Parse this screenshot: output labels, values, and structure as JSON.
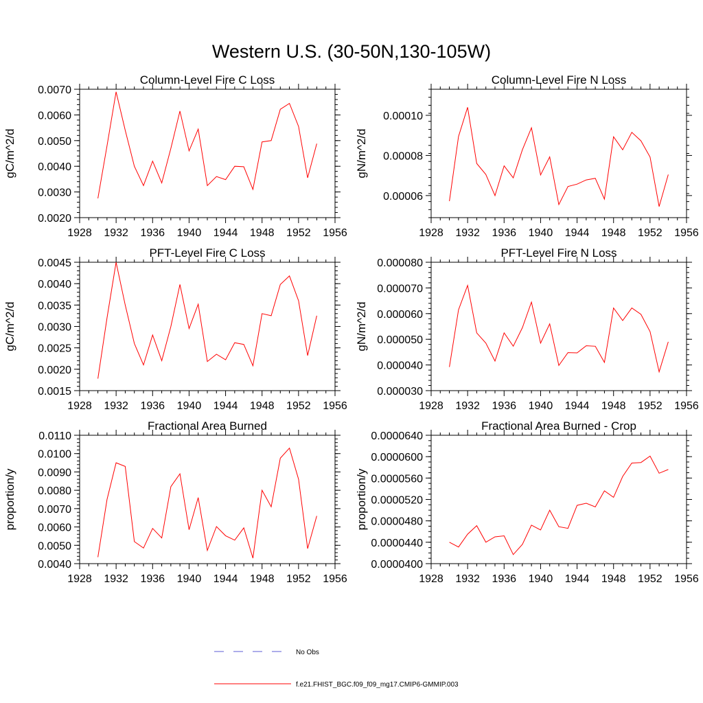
{
  "figure": {
    "title": "Western U.S. (30-50N,130-105W)",
    "colors": {
      "model_line": "#ff0000",
      "obs_line": "#5b5bd6",
      "axis": "#000000"
    },
    "legend": {
      "placement": "bottom-center",
      "entries": [
        {
          "label": "No Obs",
          "style": "dashed",
          "color": "#5b5bd6"
        },
        {
          "label": "f.e21.FHIST_BGC.f09_f09_mg17.CMIP6-GMMIP.003",
          "style": "solid",
          "color": "#ff0000"
        }
      ]
    }
  },
  "chart_data": [
    {
      "type": "line",
      "title": "Column-Level Fire C Loss",
      "ylabel": "gC/m^2/d",
      "xlim": [
        1928,
        1956
      ],
      "ylim": [
        0.002,
        0.007
      ],
      "x_ticks": [
        "1928",
        "1932",
        "1936",
        "1940",
        "1944",
        "1948",
        "1952",
        "1956"
      ],
      "y_ticks": [
        "0.0020",
        "0.0030",
        "0.0040",
        "0.0050",
        "0.0060",
        "0.0070"
      ],
      "y_tick_values": [
        0.002,
        0.003,
        0.004,
        0.005,
        0.006,
        0.007
      ],
      "y_minor_step": 0.0002,
      "x": [
        1930,
        1931,
        1932,
        1933,
        1934,
        1935,
        1936,
        1937,
        1938,
        1939,
        1940,
        1941,
        1942,
        1943,
        1944,
        1945,
        1946,
        1947,
        1948,
        1949,
        1950,
        1951,
        1952,
        1953,
        1954
      ],
      "series": [
        {
          "color": "#ff0000",
          "values": [
            0.00275,
            0.0048,
            0.0069,
            0.0054,
            0.004,
            0.00325,
            0.0042,
            0.00335,
            0.0047,
            0.00615,
            0.0046,
            0.00545,
            0.00325,
            0.0036,
            0.00348,
            0.004,
            0.00398,
            0.0031,
            0.00495,
            0.005,
            0.00622,
            0.00645,
            0.00555,
            0.00355,
            0.00488
          ]
        }
      ]
    },
    {
      "type": "line",
      "title": "Column-Level Fire N Loss",
      "ylabel": "gN/m^2/d",
      "xlim": [
        1928,
        1956
      ],
      "ylim": [
        4.9e-05,
        0.000113
      ],
      "x_ticks": [
        "1928",
        "1932",
        "1936",
        "1940",
        "1944",
        "1948",
        "1952",
        "1956"
      ],
      "y_ticks": [
        "0.00006",
        "0.00008",
        "0.00010"
      ],
      "y_tick_values": [
        6e-05,
        8e-05,
        0.0001
      ],
      "y_minor_step": 4e-06,
      "x": [
        1930,
        1931,
        1932,
        1933,
        1934,
        1935,
        1936,
        1937,
        1938,
        1939,
        1940,
        1941,
        1942,
        1943,
        1944,
        1945,
        1946,
        1947,
        1948,
        1949,
        1950,
        1951,
        1952,
        1953,
        1954
      ],
      "series": [
        {
          "color": "#ff0000",
          "values": [
            5.72e-05,
            8.95e-05,
            0.000104,
            7.6e-05,
            7.05e-05,
            6e-05,
            7.48e-05,
            6.88e-05,
            8.28e-05,
            9.38e-05,
            7.03e-05,
            7.93e-05,
            5.55e-05,
            6.45e-05,
            6.57e-05,
            6.78e-05,
            6.86e-05,
            5.82e-05,
            8.93e-05,
            8.28e-05,
            9.15e-05,
            8.73e-05,
            7.92e-05,
            5.45e-05,
            7.05e-05
          ]
        }
      ]
    },
    {
      "type": "line",
      "title": "PFT-Level Fire C Loss",
      "ylabel": "gC/m^2/d",
      "xlim": [
        1928,
        1956
      ],
      "ylim": [
        0.0015,
        0.0045
      ],
      "x_ticks": [
        "1928",
        "1932",
        "1936",
        "1940",
        "1944",
        "1948",
        "1952",
        "1956"
      ],
      "y_ticks": [
        "0.0015",
        "0.0020",
        "0.0025",
        "0.0030",
        "0.0035",
        "0.0040",
        "0.0045"
      ],
      "y_tick_values": [
        0.0015,
        0.002,
        0.0025,
        0.003,
        0.0035,
        0.004,
        0.0045
      ],
      "y_minor_step": 0.0001,
      "x": [
        1930,
        1931,
        1932,
        1933,
        1934,
        1935,
        1936,
        1937,
        1938,
        1939,
        1940,
        1941,
        1942,
        1943,
        1944,
        1945,
        1946,
        1947,
        1948,
        1949,
        1950,
        1951,
        1952,
        1953,
        1954
      ],
      "series": [
        {
          "color": "#ff0000",
          "values": [
            0.00178,
            0.0032,
            0.0045,
            0.0035,
            0.0026,
            0.0021,
            0.0028,
            0.0022,
            0.003,
            0.00398,
            0.00295,
            0.00352,
            0.00218,
            0.00235,
            0.00222,
            0.00262,
            0.00258,
            0.00208,
            0.0033,
            0.00325,
            0.00398,
            0.00418,
            0.0036,
            0.00232,
            0.00325
          ]
        }
      ]
    },
    {
      "type": "line",
      "title": "PFT-Level Fire N Loss",
      "ylabel": "gN/m^2/d",
      "xlim": [
        1928,
        1956
      ],
      "ylim": [
        3e-05,
        8e-05
      ],
      "x_ticks": [
        "1928",
        "1932",
        "1936",
        "1940",
        "1944",
        "1948",
        "1952",
        "1956"
      ],
      "y_ticks": [
        "0.000030",
        "0.000040",
        "0.000050",
        "0.000060",
        "0.000070",
        "0.000080"
      ],
      "y_tick_values": [
        3e-05,
        4e-05,
        5e-05,
        6e-05,
        7e-05,
        8e-05
      ],
      "y_minor_step": 2e-06,
      "x": [
        1930,
        1931,
        1932,
        1933,
        1934,
        1935,
        1936,
        1937,
        1938,
        1939,
        1940,
        1941,
        1942,
        1943,
        1944,
        1945,
        1946,
        1947,
        1948,
        1949,
        1950,
        1951,
        1952,
        1953,
        1954
      ],
      "series": [
        {
          "color": "#ff0000",
          "values": [
            3.92e-05,
            6.15e-05,
            7.1e-05,
            5.25e-05,
            4.85e-05,
            4.15e-05,
            5.25e-05,
            4.73e-05,
            5.45e-05,
            6.45e-05,
            4.85e-05,
            5.6e-05,
            3.98e-05,
            4.48e-05,
            4.47e-05,
            4.75e-05,
            4.73e-05,
            4.1e-05,
            6.22e-05,
            5.73e-05,
            6.22e-05,
            5.97e-05,
            5.3e-05,
            3.73e-05,
            4.9e-05
          ]
        }
      ]
    },
    {
      "type": "line",
      "title": "Fractional Area Burned",
      "ylabel": "proportion/y",
      "xlim": [
        1928,
        1956
      ],
      "ylim": [
        0.004,
        0.011
      ],
      "x_ticks": [
        "1928",
        "1932",
        "1936",
        "1940",
        "1944",
        "1948",
        "1952",
        "1956"
      ],
      "y_ticks": [
        "0.0040",
        "0.0050",
        "0.0060",
        "0.0070",
        "0.0080",
        "0.0090",
        "0.0100",
        "0.0110"
      ],
      "y_tick_values": [
        0.004,
        0.005,
        0.006,
        0.007,
        0.008,
        0.009,
        0.01,
        0.011
      ],
      "y_minor_step": 0.0002,
      "x": [
        1930,
        1931,
        1932,
        1933,
        1934,
        1935,
        1936,
        1937,
        1938,
        1939,
        1940,
        1941,
        1942,
        1943,
        1944,
        1945,
        1946,
        1947,
        1948,
        1949,
        1950,
        1951,
        1952,
        1953,
        1954
      ],
      "series": [
        {
          "color": "#ff0000",
          "values": [
            0.00435,
            0.0075,
            0.0095,
            0.0093,
            0.0052,
            0.00485,
            0.00592,
            0.0054,
            0.0082,
            0.0089,
            0.00585,
            0.0076,
            0.00472,
            0.00602,
            0.00552,
            0.00528,
            0.00595,
            0.0043,
            0.008,
            0.0071,
            0.00975,
            0.0103,
            0.0086,
            0.00482,
            0.0066
          ]
        }
      ]
    },
    {
      "type": "line",
      "title": "Fractional Area Burned - Crop",
      "ylabel": "proportion/y",
      "xlim": [
        1928,
        1956
      ],
      "ylim": [
        4e-05,
        6.4e-05
      ],
      "x_ticks": [
        "1928",
        "1932",
        "1936",
        "1940",
        "1944",
        "1948",
        "1952",
        "1956"
      ],
      "y_ticks": [
        "0.0000400",
        "0.0000440",
        "0.0000480",
        "0.0000520",
        "0.0000560",
        "0.0000600",
        "0.0000640"
      ],
      "y_tick_values": [
        4e-05,
        4.4e-05,
        4.8e-05,
        5.2e-05,
        5.6e-05,
        6e-05,
        6.4e-05
      ],
      "y_minor_step": 1e-06,
      "x": [
        1930,
        1931,
        1932,
        1933,
        1934,
        1935,
        1936,
        1937,
        1938,
        1939,
        1940,
        1941,
        1942,
        1943,
        1944,
        1945,
        1946,
        1947,
        1948,
        1949,
        1950,
        1951,
        1952,
        1953,
        1954
      ],
      "series": [
        {
          "color": "#ff0000",
          "values": [
            4.4e-05,
            4.31e-05,
            4.55e-05,
            4.71e-05,
            4.4e-05,
            4.5e-05,
            4.52e-05,
            4.17e-05,
            4.36e-05,
            4.72e-05,
            4.63e-05,
            5e-05,
            4.69e-05,
            4.66e-05,
            5.09e-05,
            5.13e-05,
            5.06e-05,
            5.36e-05,
            5.24e-05,
            5.63e-05,
            5.88e-05,
            5.89e-05,
            6.01e-05,
            5.69e-05,
            5.76e-05
          ]
        }
      ]
    }
  ]
}
